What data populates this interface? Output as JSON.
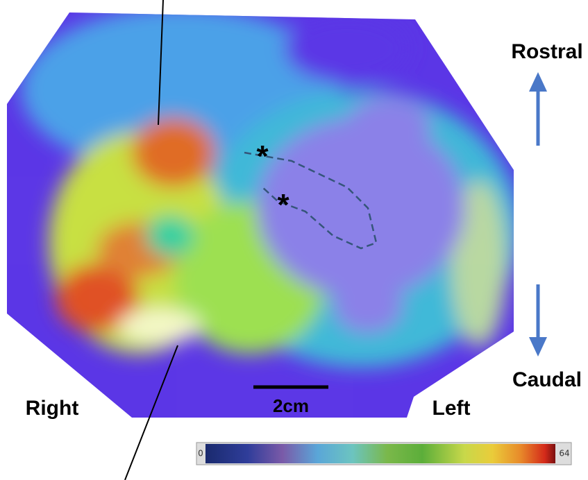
{
  "labels": {
    "rostral": "Rostral",
    "caudal": "Caudal",
    "right": "Right",
    "left": "Left"
  },
  "scale_bar": {
    "label": "2cm"
  },
  "markers": [
    "*",
    "*"
  ],
  "colorbar": {
    "min_label": "0",
    "max_label": "64"
  }
}
